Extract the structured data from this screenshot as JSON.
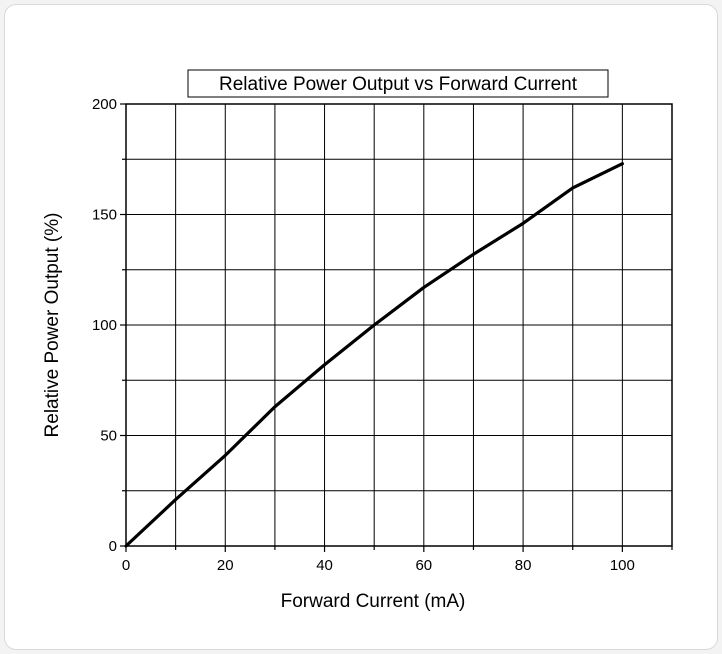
{
  "chart_data": {
    "type": "line",
    "title": "Relative Power Output vs Forward Current",
    "xlabel": "Forward Current (mA)",
    "ylabel": "Relative Power Output (%)",
    "xlim": [
      0,
      110
    ],
    "ylim": [
      0,
      200
    ],
    "x_ticks": [
      0,
      20,
      40,
      60,
      80,
      100
    ],
    "y_ticks": [
      0,
      50,
      100,
      150,
      200
    ],
    "grid": true,
    "line_color": "#000000",
    "series": [
      {
        "x": [
          0,
          10,
          20,
          30,
          40,
          50,
          60,
          70,
          80,
          90,
          100
        ],
        "values": [
          0,
          21,
          41,
          63,
          82,
          100,
          117,
          132,
          146,
          162,
          173
        ]
      }
    ]
  }
}
